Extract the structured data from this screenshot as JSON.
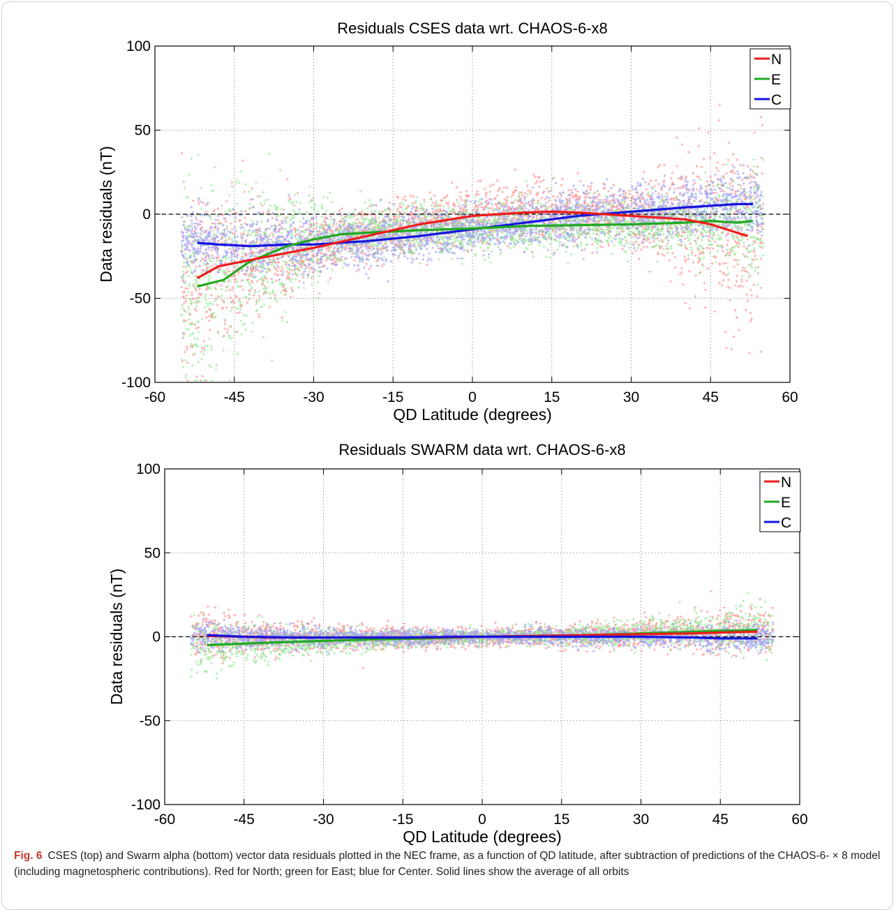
{
  "chart_data": [
    {
      "type": "scatter",
      "title": "Residuals CSES data wrt. CHAOS-6-x8",
      "xlabel": "QD Latitude (degrees)",
      "ylabel": "Data residuals (nT)",
      "xlim": [
        -60,
        60
      ],
      "ylim": [
        -100,
        100
      ],
      "xticks": [
        "-60",
        "-45",
        "-30",
        "-15",
        "0",
        "15",
        "30",
        "45",
        "60"
      ],
      "yticks": [
        "100",
        "50",
        "0",
        "-50",
        "-100"
      ],
      "grid": true,
      "legend_position": "top-right",
      "legend": [
        "N",
        "E",
        "C"
      ],
      "reference_line_y": 0,
      "series": [
        {
          "name": "N",
          "color": "#ee1c1c",
          "scatter_color": "#ff8a8a",
          "x": [
            -52,
            -48,
            -40,
            -30,
            -20,
            -10,
            0,
            10,
            15,
            20,
            25,
            30,
            35,
            40,
            45,
            52
          ],
          "y": [
            -38,
            -31,
            -26,
            -20,
            -13,
            -6,
            -1,
            1,
            1.5,
            1,
            0,
            -1,
            -2,
            -3,
            -6,
            -13
          ]
        },
        {
          "name": "E",
          "color": "#1faa1f",
          "scatter_color": "#8fe88f",
          "x": [
            -52,
            -47,
            -42,
            -35,
            -30,
            -25,
            -20,
            -10,
            0,
            10,
            20,
            30,
            40,
            45,
            50,
            53
          ],
          "y": [
            -43,
            -39,
            -28,
            -19,
            -15,
            -12,
            -11,
            -9.5,
            -8.5,
            -7,
            -6.5,
            -6,
            -5,
            -4,
            -5,
            -4
          ]
        },
        {
          "name": "C",
          "color": "#1515dd",
          "scatter_color": "#9a9af5",
          "x": [
            -52,
            -48,
            -42,
            -35,
            -30,
            -20,
            -10,
            0,
            10,
            20,
            30,
            40,
            45,
            50,
            53
          ],
          "y": [
            -17,
            -18,
            -19,
            -18,
            -18,
            -16,
            -13,
            -9,
            -5,
            -1,
            1.5,
            4,
            5,
            6,
            6
          ]
        }
      ]
    },
    {
      "type": "scatter",
      "title": "Residuals SWARM data wrt. CHAOS-6-x8",
      "xlabel": "QD Latitude (degrees)",
      "ylabel": "Data residuals (nT)",
      "xlim": [
        -60,
        60
      ],
      "ylim": [
        -100,
        100
      ],
      "xticks": [
        "-60",
        "-45",
        "-30",
        "-15",
        "0",
        "15",
        "30",
        "45",
        "60"
      ],
      "yticks": [
        "100",
        "50",
        "0",
        "-50",
        "-100"
      ],
      "grid": true,
      "legend_position": "top-right",
      "legend": [
        "N",
        "E",
        "C"
      ],
      "reference_line_y": 0,
      "series": [
        {
          "name": "N",
          "color": "#ee1c1c",
          "scatter_color": "#ff8a8a",
          "x": [
            -52,
            -40,
            -30,
            -20,
            -10,
            0,
            10,
            20,
            30,
            40,
            45,
            52
          ],
          "y": [
            0.5,
            -0.5,
            -0.5,
            -0.5,
            -0.5,
            0,
            0.5,
            1,
            1.5,
            2,
            2.5,
            3
          ]
        },
        {
          "name": "E",
          "color": "#1faa1f",
          "scatter_color": "#8fe88f",
          "x": [
            -52,
            -40,
            -30,
            -20,
            -10,
            0,
            10,
            20,
            30,
            40,
            45,
            52
          ],
          "y": [
            -5,
            -3.5,
            -2.5,
            -1.5,
            -1,
            0,
            0.5,
            1,
            2,
            3,
            3.5,
            4
          ]
        },
        {
          "name": "C",
          "color": "#1515dd",
          "scatter_color": "#9a9af5",
          "x": [
            -52,
            -45,
            -35,
            -25,
            -15,
            -5,
            0,
            10,
            20,
            30,
            40,
            45,
            52
          ],
          "y": [
            1,
            0,
            -0.5,
            -0.5,
            -0.5,
            0,
            0,
            0,
            0,
            0,
            -0.5,
            -1,
            -1
          ]
        }
      ]
    }
  ],
  "caption": {
    "label": "Fig. 6",
    "text": "CSES (top) and Swarm alpha (bottom) vector data residuals plotted in the NEC frame, as a function of QD latitude, after subtraction of predictions of the CHAOS-6- × 8 model (including magnetospheric contributions). Red for North; green for East; blue for Center. Solid lines show the average of all orbits"
  }
}
